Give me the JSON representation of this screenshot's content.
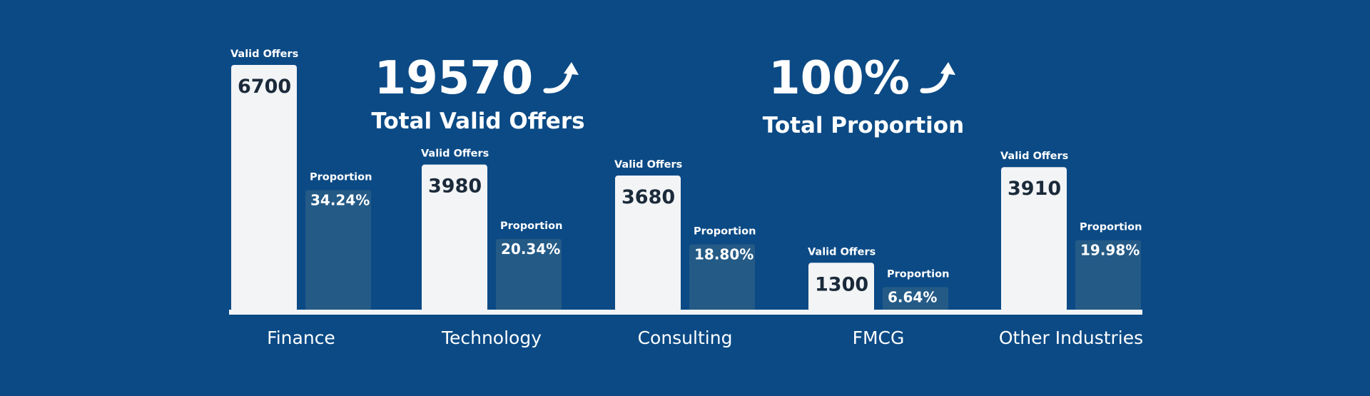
{
  "summary": {
    "total_offers": {
      "value": "19570",
      "label": "Total Valid Offers",
      "icon": "trend-up-arrow-icon"
    },
    "total_proportion": {
      "value": "100%",
      "label": "Total Proportion",
      "icon": "trend-up-arrow-icon"
    }
  },
  "colors": {
    "background": "#0b4a85",
    "offers_bar": "#f2f4f6",
    "proportion_bar": "#245a86",
    "baseline": "#f2f4f6",
    "dark_text": "#1b2a3a",
    "light_text": "#ffffff"
  },
  "chart_data": {
    "type": "bar",
    "categories": [
      "Finance",
      "Technology",
      "Consulting",
      "FMCG",
      "Other Industries"
    ],
    "series": [
      {
        "name": "Valid Offers",
        "values": [
          6700,
          3980,
          3680,
          1300,
          3910
        ],
        "labels": [
          "6700",
          "3980",
          "3680",
          "1300",
          "3910"
        ]
      },
      {
        "name": "Proportion",
        "values": [
          34.24,
          20.34,
          18.8,
          6.64,
          19.98
        ],
        "labels": [
          "34.24%",
          "20.34%",
          "18.80%",
          "6.64%",
          "19.98%"
        ]
      }
    ],
    "grid": false,
    "legend": "none"
  }
}
